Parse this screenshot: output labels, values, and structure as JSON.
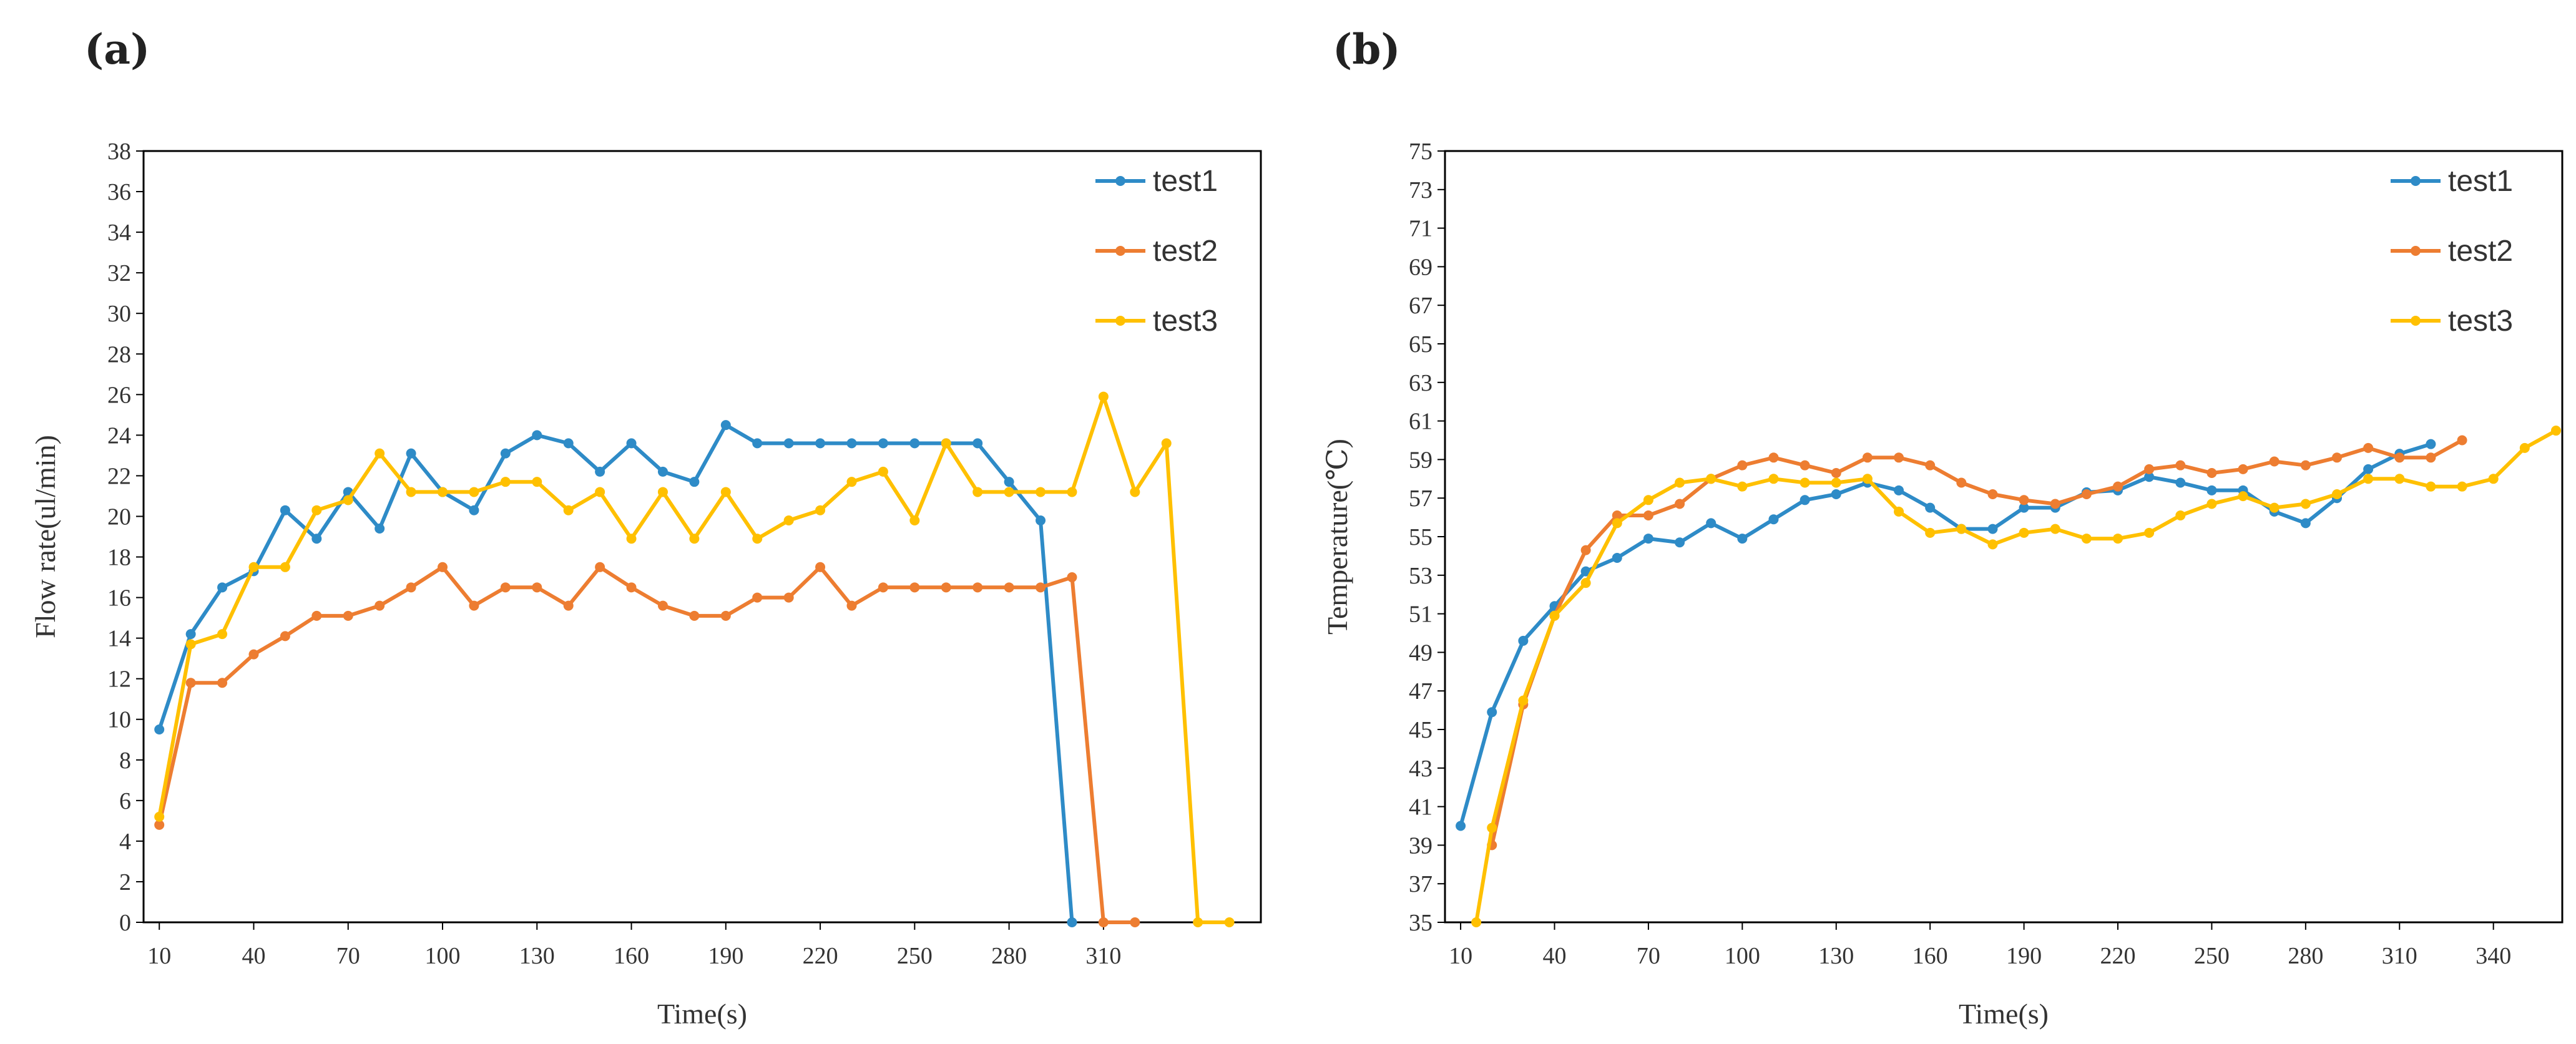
{
  "panel_labels": {
    "a": "(a)",
    "b": "(b)"
  },
  "colors": {
    "test1": "#2E8BC7",
    "test2": "#ED7D31",
    "test3": "#FFC000"
  },
  "chart_data": [
    {
      "type": "line",
      "xlabel": "Time(s)",
      "ylabel": "Flow rate(ul/min)",
      "xlim": [
        5,
        360
      ],
      "ylim": [
        0,
        38
      ],
      "xticks": [
        10,
        40,
        70,
        100,
        130,
        160,
        190,
        220,
        250,
        280,
        310
      ],
      "yticks": [
        0,
        2,
        4,
        6,
        8,
        10,
        12,
        14,
        16,
        18,
        20,
        22,
        24,
        26,
        28,
        30,
        32,
        34,
        36,
        38
      ],
      "legend": "top-right",
      "series": [
        {
          "name": "test1",
          "color": "#2E8BC7",
          "x": [
            10,
            20,
            30,
            40,
            50,
            60,
            70,
            80,
            90,
            100,
            110,
            120,
            130,
            140,
            150,
            160,
            170,
            180,
            190,
            200,
            210,
            220,
            230,
            240,
            250,
            260,
            270,
            280,
            290,
            300
          ],
          "y": [
            9.5,
            14.2,
            16.5,
            17.3,
            20.3,
            18.9,
            21.2,
            19.4,
            23.1,
            21.2,
            20.3,
            23.1,
            24.0,
            23.6,
            22.2,
            23.6,
            22.2,
            21.7,
            24.5,
            23.6,
            23.6,
            23.6,
            23.6,
            23.6,
            23.6,
            23.6,
            23.6,
            21.7,
            19.8,
            0
          ]
        },
        {
          "name": "test2",
          "color": "#ED7D31",
          "x": [
            10,
            20,
            30,
            40,
            50,
            60,
            70,
            80,
            90,
            100,
            110,
            120,
            130,
            140,
            150,
            160,
            170,
            180,
            190,
            200,
            210,
            220,
            230,
            240,
            250,
            260,
            270,
            280,
            290,
            300,
            310,
            320
          ],
          "y": [
            4.8,
            11.8,
            11.8,
            13.2,
            14.1,
            15.1,
            15.1,
            15.6,
            16.5,
            17.5,
            15.6,
            16.5,
            16.5,
            15.6,
            17.5,
            16.5,
            15.6,
            15.1,
            15.1,
            16.0,
            16.0,
            17.5,
            15.6,
            16.5,
            16.5,
            16.5,
            16.5,
            16.5,
            16.5,
            17.0,
            0,
            0
          ]
        },
        {
          "name": "test3",
          "color": "#FFC000",
          "x": [
            10,
            20,
            30,
            40,
            50,
            60,
            70,
            80,
            90,
            100,
            110,
            120,
            130,
            140,
            150,
            160,
            170,
            180,
            190,
            200,
            210,
            220,
            230,
            240,
            250,
            260,
            270,
            280,
            290,
            300,
            310,
            320,
            330,
            340,
            350
          ],
          "y": [
            5.2,
            13.7,
            14.2,
            17.5,
            17.5,
            20.3,
            20.8,
            23.1,
            21.2,
            21.2,
            21.2,
            21.7,
            21.7,
            20.3,
            21.2,
            18.9,
            21.2,
            18.9,
            21.2,
            18.9,
            19.8,
            20.3,
            21.7,
            22.2,
            19.8,
            23.6,
            21.2,
            21.2,
            21.2,
            21.2,
            25.9,
            21.2,
            23.6,
            0,
            0
          ]
        }
      ]
    },
    {
      "type": "line",
      "xlabel": "Time(s)",
      "ylabel": "Temperature(℃)",
      "xlim": [
        5,
        362
      ],
      "ylim": [
        35,
        75
      ],
      "xticks": [
        10,
        40,
        70,
        100,
        130,
        160,
        190,
        220,
        250,
        280,
        310,
        340
      ],
      "yticks": [
        35,
        37,
        39,
        41,
        43,
        45,
        47,
        49,
        51,
        53,
        55,
        57,
        59,
        61,
        63,
        65,
        67,
        69,
        71,
        73,
        75
      ],
      "legend": "top-right",
      "series": [
        {
          "name": "test1",
          "color": "#2E8BC7",
          "x": [
            10,
            20,
            30,
            40,
            50,
            60,
            70,
            80,
            90,
            100,
            110,
            120,
            130,
            140,
            150,
            160,
            170,
            180,
            190,
            200,
            210,
            220,
            230,
            240,
            250,
            260,
            270,
            280,
            290,
            300,
            310,
            320
          ],
          "y": [
            40.0,
            45.9,
            49.6,
            51.4,
            53.2,
            53.9,
            54.9,
            54.7,
            55.7,
            54.9,
            55.9,
            56.9,
            57.2,
            57.8,
            57.4,
            56.5,
            55.4,
            55.4,
            56.5,
            56.5,
            57.3,
            57.4,
            58.1,
            57.8,
            57.4,
            57.4,
            56.3,
            55.7,
            57.0,
            58.5,
            59.3,
            59.8
          ]
        },
        {
          "name": "test2",
          "color": "#ED7D31",
          "x": [
            20,
            30,
            40,
            50,
            60,
            70,
            80,
            90,
            100,
            110,
            120,
            130,
            140,
            150,
            160,
            170,
            180,
            190,
            200,
            210,
            220,
            230,
            240,
            250,
            260,
            270,
            280,
            290,
            300,
            310,
            320,
            330
          ],
          "y": [
            39.0,
            46.3,
            50.9,
            54.3,
            56.1,
            56.1,
            56.7,
            58.0,
            58.7,
            59.1,
            58.7,
            58.3,
            59.1,
            59.1,
            58.7,
            57.8,
            57.2,
            56.9,
            56.7,
            57.2,
            57.6,
            58.5,
            58.7,
            58.3,
            58.5,
            58.9,
            58.7,
            59.1,
            59.6,
            59.1,
            59.1,
            60.0
          ]
        },
        {
          "name": "test3",
          "color": "#FFC000",
          "x": [
            15,
            20,
            30,
            40,
            50,
            60,
            70,
            80,
            90,
            100,
            110,
            120,
            130,
            140,
            150,
            160,
            170,
            180,
            190,
            200,
            210,
            220,
            230,
            240,
            250,
            260,
            270,
            280,
            290,
            300,
            310,
            320,
            330,
            340,
            350,
            360
          ],
          "y": [
            35.0,
            39.9,
            46.5,
            50.9,
            52.6,
            55.7,
            56.9,
            57.8,
            58.0,
            57.6,
            58.0,
            57.8,
            57.8,
            58.0,
            56.3,
            55.2,
            55.4,
            54.6,
            55.2,
            55.4,
            54.9,
            54.9,
            55.2,
            56.1,
            56.7,
            57.1,
            56.5,
            56.7,
            57.2,
            58.0,
            58.0,
            57.6,
            57.6,
            58.0,
            59.6,
            60.5
          ]
        }
      ]
    }
  ]
}
